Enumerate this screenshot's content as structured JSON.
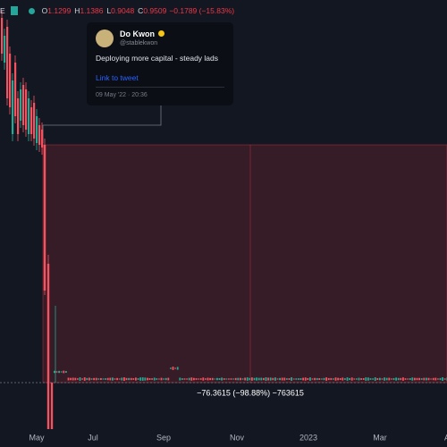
{
  "header": {
    "symbol_tail": "E",
    "ohlc": [
      {
        "key": "O",
        "value": "1.1299"
      },
      {
        "key": "H",
        "value": "1.1386"
      },
      {
        "key": "L",
        "value": "0.9048"
      },
      {
        "key": "C",
        "value": "0.9509"
      }
    ],
    "change": "−0.1789 (−15.83%)"
  },
  "tweet": {
    "name": "Do Kwon",
    "handle": "@stablekwon",
    "text": "Deploying more capital - steady lads",
    "link": "Link to tweet",
    "date": "09 May '22 · 20:36"
  },
  "measure": {
    "label": "−76.3615 (−98.88%) −763615"
  },
  "x_axis": {
    "labels": [
      "May",
      "Jul",
      "Sep",
      "Nov",
      "2023",
      "Mar",
      "A"
    ]
  }
}
